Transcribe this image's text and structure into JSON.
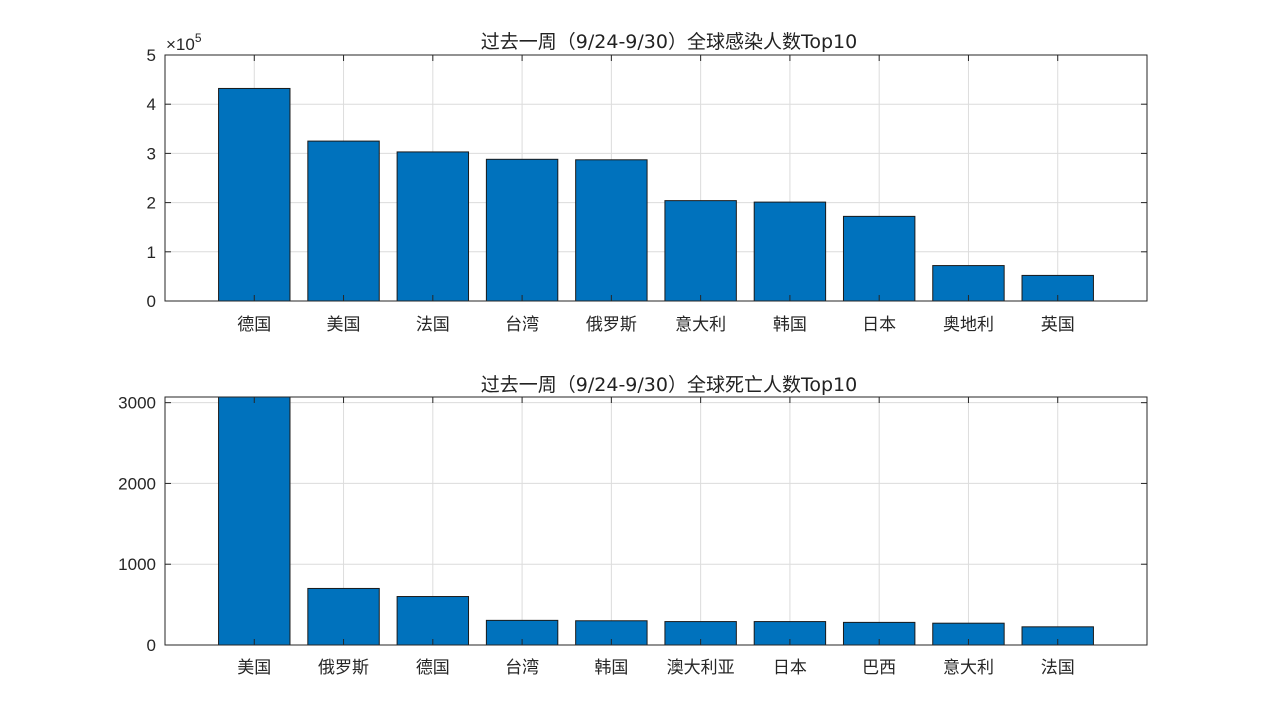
{
  "chart_data": [
    {
      "type": "bar",
      "title": "过去一周（9/24-9/30）全球感染人数Top10",
      "categories": [
        "德国",
        "美国",
        "法国",
        "台湾",
        "俄罗斯",
        "意大利",
        "韩国",
        "日本",
        "奥地利",
        "英国"
      ],
      "values": [
        432000,
        325000,
        303000,
        288000,
        287000,
        204000,
        201000,
        172000,
        72000,
        52000
      ],
      "ylim": [
        0,
        500000
      ],
      "yticks": [
        0,
        1,
        2,
        3,
        4,
        5
      ],
      "yscale_factor_label": "×10",
      "yscale_exponent": "5",
      "grid": true,
      "xlabel": "",
      "ylabel": ""
    },
    {
      "type": "bar",
      "title": "过去一周（9/24-9/30）全球死亡人数Top10",
      "categories": [
        "美国",
        "俄罗斯",
        "德国",
        "台湾",
        "韩国",
        "澳大利亚",
        "日本",
        "巴西",
        "意大利",
        "法国"
      ],
      "values": [
        3100,
        700,
        600,
        305,
        300,
        290,
        290,
        280,
        270,
        225
      ],
      "ylim": [
        0,
        3070
      ],
      "yticks": [
        0,
        1000,
        2000,
        3000
      ],
      "grid": true,
      "xlabel": "",
      "ylabel": ""
    }
  ]
}
